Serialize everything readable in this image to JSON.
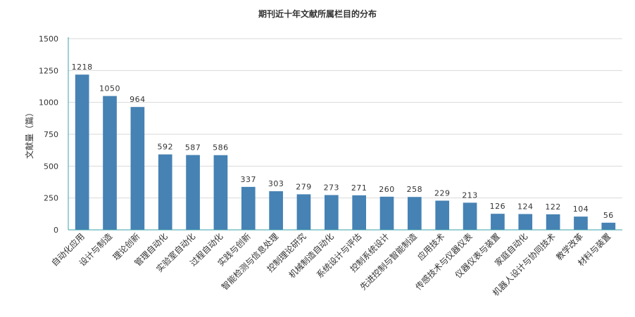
{
  "chart_data": {
    "type": "bar",
    "title": "期刊近十年文献所属栏目的分布",
    "xlabel": "",
    "ylabel": "文献量（篇）",
    "ylim": [
      0,
      1500
    ],
    "yticks": [
      0,
      250,
      500,
      750,
      1000,
      1250,
      1500
    ],
    "grid": true,
    "bar_color": "#4682b4",
    "axis_color": "#3aa0a8",
    "categories": [
      "自动化应用",
      "设计与制造",
      "理论创新",
      "管理自动化",
      "实验室自动化",
      "过程自动化",
      "实践与创新",
      "智能检测与信息处理",
      "控制理论研究",
      "机械制造自动化",
      "系统设计与评估",
      "控制系统设计",
      "先进控制与智能制造",
      "应用技术",
      "传感技术与仪器仪表",
      "仪器仪表与装置",
      "家庭自动化",
      "机器人设计与协同技术",
      "教学改革",
      "材料与装置"
    ],
    "values": [
      1218,
      1050,
      964,
      592,
      587,
      586,
      337,
      303,
      279,
      273,
      271,
      260,
      258,
      229,
      213,
      126,
      124,
      122,
      104,
      56
    ]
  }
}
